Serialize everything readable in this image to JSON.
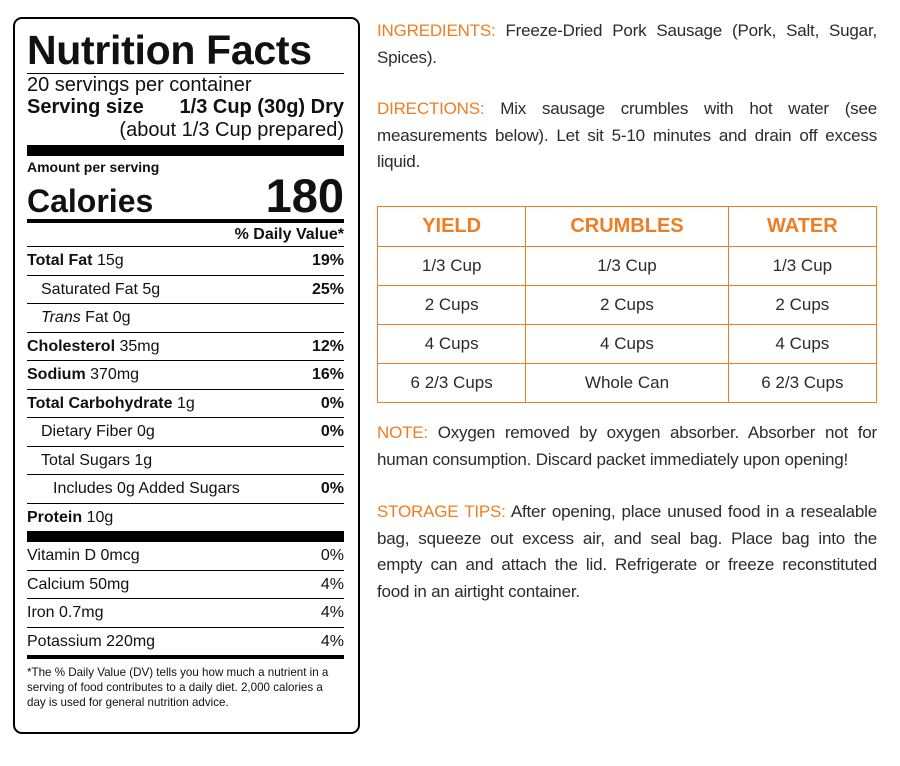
{
  "nutrition": {
    "title": "Nutrition Facts",
    "servings_per_container": "20 servings per container",
    "serving_size_label": "Serving size",
    "serving_size_value": "1/3 Cup (30g) Dry",
    "serving_prepared": "(about 1/3 Cup prepared)",
    "amount_per_serving": "Amount per serving",
    "calories_label": "Calories",
    "calories_value": "180",
    "dv_header": "% Daily Value*",
    "total_fat_label": "Total Fat",
    "total_fat_amount": "15g",
    "total_fat_dv": "19%",
    "sat_fat": "Saturated Fat 5g",
    "sat_fat_dv": "25%",
    "trans_fat_italic": "Trans",
    "trans_fat_rest": "Fat 0g",
    "cholesterol_label": "Cholesterol",
    "cholesterol_amount": "35mg",
    "cholesterol_dv": "12%",
    "sodium_label": "Sodium",
    "sodium_amount": "370mg",
    "sodium_dv": "16%",
    "carb_label": "Total Carbohydrate",
    "carb_amount": "1g",
    "carb_dv": "0%",
    "fiber": "Dietary Fiber 0g",
    "fiber_dv": "0%",
    "sugars": "Total Sugars 1g",
    "added_sugars": "Includes 0g Added Sugars",
    "added_sugars_dv": "0%",
    "protein_label": "Protein",
    "protein_amount": "10g",
    "vitamins": [
      {
        "label": "Vitamin D 0mcg",
        "dv": "0%"
      },
      {
        "label": "Calcium 50mg",
        "dv": "4%"
      },
      {
        "label": "Iron 0.7mg",
        "dv": "4%"
      },
      {
        "label": "Potassium 220mg",
        "dv": "4%"
      }
    ],
    "footnote": "*The % Daily Value (DV) tells you how much a nutrient in a serving of food contributes to a daily diet. 2,000 calories a day is used for general nutrition advice."
  },
  "ingredients": {
    "label": "INGREDIENTS:",
    "text": "Freeze-Dried Pork Sausage (Pork, Salt, Sugar, Spices)."
  },
  "directions": {
    "label": "DIRECTIONS:",
    "text": "Mix sausage crumbles with hot water (see measurements below). Let sit 5-10 minutes and drain off excess liquid."
  },
  "yield_table": {
    "headers": [
      "YIELD",
      "CRUMBLES",
      "WATER"
    ],
    "rows": [
      [
        "1/3 Cup",
        "1/3 Cup",
        "1/3 Cup"
      ],
      [
        "2 Cups",
        "2 Cups",
        "2 Cups"
      ],
      [
        "4 Cups",
        "4 Cups",
        "4 Cups"
      ],
      [
        "6 2/3 Cups",
        "Whole Can",
        "6 2/3 Cups"
      ]
    ]
  },
  "note": {
    "label": "NOTE:",
    "text": "Oxygen removed by oxygen absorber. Absorber not for human consumption. Discard packet immediately upon opening!"
  },
  "storage": {
    "label": "STORAGE TIPS:",
    "text": "After opening, place unused food in a resealable bag, squeeze out excess air, and seal bag. Place bag into the empty can and attach the lid. Refrigerate or freeze reconstituted food in an airtight container."
  },
  "colors": {
    "accent": "#f07d21",
    "text": "#2b2b2b"
  }
}
